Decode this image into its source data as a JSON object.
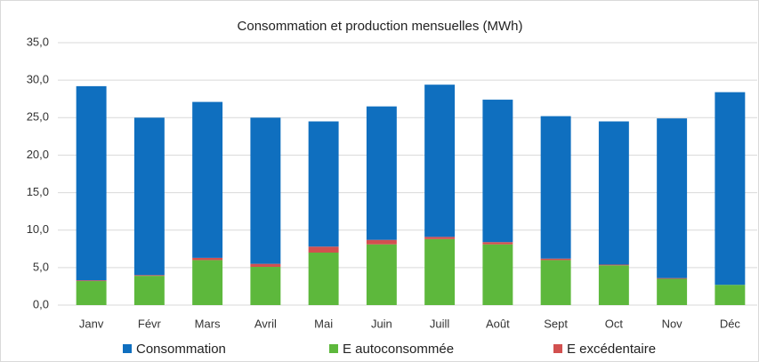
{
  "chart_data": {
    "type": "stacked_bar",
    "title": "Consommation et production mensuelles (MWh)",
    "categories": [
      "Janv",
      "Févr",
      "Mars",
      "Avril",
      "Mai",
      "Juin",
      "Juill",
      "Août",
      "Sept",
      "Oct",
      "Nov",
      "Déc"
    ],
    "series": [
      {
        "name": "Consommation",
        "color": "#0f6fbf",
        "values": [
          25.9,
          21.0,
          20.8,
          19.5,
          16.7,
          17.8,
          20.3,
          19.0,
          19.0,
          19.1,
          21.3,
          25.7
        ]
      },
      {
        "name": "E autoconsommée",
        "color": "#5db83c",
        "values": [
          3.2,
          3.9,
          6.0,
          5.1,
          7.0,
          8.1,
          8.8,
          8.1,
          6.0,
          5.3,
          3.5,
          2.7
        ]
      },
      {
        "name": "E excédentaire",
        "color": "#d2504f",
        "values": [
          0.1,
          0.1,
          0.3,
          0.4,
          0.8,
          0.6,
          0.3,
          0.3,
          0.2,
          0.1,
          0.1,
          0.0
        ]
      }
    ],
    "ylim": [
      0,
      35
    ],
    "yticks": [
      {
        "value": 0,
        "label": "0,0"
      },
      {
        "value": 5,
        "label": "5,0"
      },
      {
        "value": 10,
        "label": "10,0"
      },
      {
        "value": 15,
        "label": "15,0"
      },
      {
        "value": 20,
        "label": "20,0"
      },
      {
        "value": 25,
        "label": "25,0"
      },
      {
        "value": 30,
        "label": "30,0"
      },
      {
        "value": 35,
        "label": "35,0"
      }
    ],
    "grid": true,
    "legend": "bottom"
  }
}
